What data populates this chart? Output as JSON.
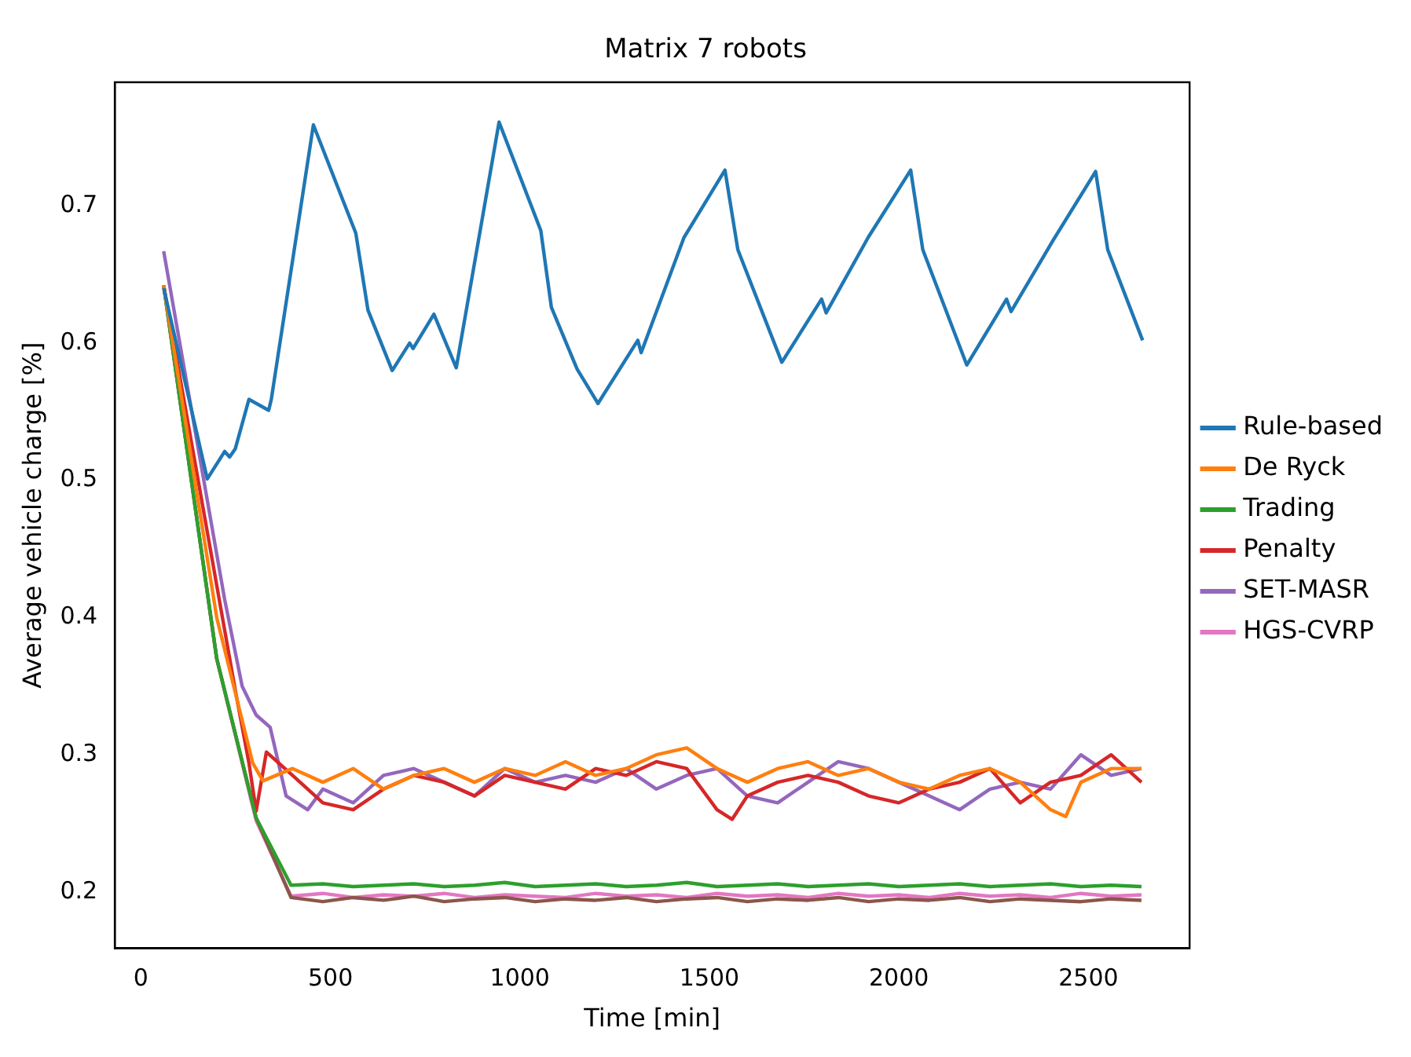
{
  "chart_data": {
    "type": "line",
    "title": "Matrix 7 robots",
    "xlabel": "Time [min]",
    "ylabel": "Average vehicle charge [%]",
    "xlim": [
      -69,
      2767
    ],
    "xticks": [
      0,
      500,
      1000,
      1500,
      2000,
      2500
    ],
    "ylim": [
      0.159,
      0.79
    ],
    "yticks": [
      0.2,
      0.3,
      0.4,
      0.5,
      0.6,
      0.7
    ],
    "grid": false,
    "legend": "right",
    "marker": "none",
    "line_style": "solid",
    "series": [
      {
        "name": "Rule-based",
        "color": "#1f77b4",
        "x": [
          60,
          175,
          221,
          234,
          249,
          285,
          337,
          344,
          455,
          567,
          599,
          663,
          709,
          718,
          773,
          832,
          945,
          1055,
          1083,
          1151,
          1206,
          1311,
          1320,
          1433,
          1541,
          1575,
          1691,
          1796,
          1808,
          1919,
          2031,
          2063,
          2179,
          2284,
          2296,
          2407,
          2519,
          2551,
          2643
        ],
        "values": [
          0.64,
          0.501,
          0.521,
          0.517,
          0.523,
          0.559,
          0.551,
          0.559,
          0.759,
          0.68,
          0.624,
          0.58,
          0.6,
          0.596,
          0.621,
          0.582,
          0.761,
          0.682,
          0.626,
          0.581,
          0.556,
          0.602,
          0.593,
          0.677,
          0.726,
          0.668,
          0.586,
          0.632,
          0.622,
          0.677,
          0.726,
          0.668,
          0.584,
          0.632,
          0.623,
          0.675,
          0.725,
          0.668,
          0.602
        ]
      },
      {
        "name": "De Ryck",
        "color": "#ff7f0e",
        "x": [
          60,
          200,
          295,
          322,
          400,
          480,
          560,
          640,
          720,
          800,
          880,
          960,
          1040,
          1120,
          1200,
          1280,
          1360,
          1440,
          1520,
          1600,
          1680,
          1760,
          1840,
          1920,
          2000,
          2080,
          2160,
          2240,
          2320,
          2400,
          2440,
          2480,
          2560,
          2640
        ],
        "values": [
          0.642,
          0.4,
          0.294,
          0.281,
          0.29,
          0.28,
          0.29,
          0.275,
          0.285,
          0.29,
          0.28,
          0.29,
          0.285,
          0.295,
          0.285,
          0.29,
          0.3,
          0.305,
          0.29,
          0.28,
          0.29,
          0.295,
          0.285,
          0.29,
          0.28,
          0.275,
          0.285,
          0.29,
          0.28,
          0.26,
          0.255,
          0.28,
          0.29,
          0.29
        ]
      },
      {
        "name": "Trading",
        "color": "#2ca02c",
        "x": [
          60,
          200,
          304,
          396,
          480,
          560,
          640,
          720,
          800,
          880,
          960,
          1040,
          1120,
          1200,
          1280,
          1360,
          1440,
          1520,
          1600,
          1680,
          1760,
          1840,
          1920,
          2000,
          2080,
          2160,
          2240,
          2320,
          2400,
          2480,
          2560,
          2640
        ],
        "values": [
          0.642,
          0.37,
          0.254,
          0.205,
          0.206,
          0.204,
          0.205,
          0.206,
          0.204,
          0.205,
          0.207,
          0.204,
          0.205,
          0.206,
          0.204,
          0.205,
          0.207,
          0.204,
          0.205,
          0.206,
          0.204,
          0.205,
          0.206,
          0.204,
          0.205,
          0.206,
          0.204,
          0.205,
          0.206,
          0.204,
          0.205,
          0.204
        ]
      },
      {
        "name": "Penalty",
        "color": "#d62728",
        "x": [
          60,
          249,
          285,
          304,
          331,
          400,
          480,
          560,
          640,
          720,
          800,
          880,
          960,
          1040,
          1120,
          1200,
          1280,
          1360,
          1440,
          1520,
          1560,
          1600,
          1680,
          1760,
          1840,
          1920,
          2000,
          2080,
          2160,
          2240,
          2320,
          2400,
          2480,
          2560,
          2640
        ],
        "values": [
          0.642,
          0.347,
          0.294,
          0.259,
          0.302,
          0.285,
          0.265,
          0.26,
          0.275,
          0.285,
          0.28,
          0.27,
          0.285,
          0.28,
          0.275,
          0.29,
          0.285,
          0.295,
          0.29,
          0.26,
          0.253,
          0.27,
          0.28,
          0.285,
          0.28,
          0.27,
          0.265,
          0.275,
          0.28,
          0.29,
          0.265,
          0.28,
          0.285,
          0.3,
          0.28
        ]
      },
      {
        "name": "SET-MASR",
        "color": "#9467bd",
        "x": [
          60,
          221,
          267,
          304,
          341,
          383,
          440,
          480,
          560,
          640,
          720,
          800,
          880,
          960,
          1040,
          1120,
          1200,
          1280,
          1360,
          1440,
          1520,
          1600,
          1680,
          1760,
          1840,
          1920,
          2000,
          2080,
          2160,
          2240,
          2320,
          2400,
          2480,
          2560,
          2640
        ],
        "values": [
          0.667,
          0.413,
          0.35,
          0.329,
          0.32,
          0.27,
          0.26,
          0.275,
          0.265,
          0.285,
          0.29,
          0.28,
          0.27,
          0.29,
          0.28,
          0.285,
          0.28,
          0.29,
          0.275,
          0.285,
          0.29,
          0.27,
          0.265,
          0.28,
          0.295,
          0.29,
          0.28,
          0.27,
          0.26,
          0.275,
          0.28,
          0.275,
          0.3,
          0.285,
          0.29
        ]
      },
      {
        "color": "#8c564b",
        "x": [
          60,
          200,
          304,
          396,
          480,
          560,
          640,
          720,
          800,
          880,
          960,
          1040,
          1120,
          1200,
          1280,
          1360,
          1440,
          1520,
          1600,
          1680,
          1760,
          1840,
          1920,
          2000,
          2080,
          2160,
          2240,
          2320,
          2400,
          2480,
          2560,
          2640
        ],
        "values": [
          0.642,
          0.37,
          0.254,
          0.196,
          0.193,
          0.196,
          0.194,
          0.197,
          0.193,
          0.195,
          0.196,
          0.193,
          0.195,
          0.194,
          0.196,
          0.193,
          0.195,
          0.196,
          0.193,
          0.195,
          0.194,
          0.196,
          0.193,
          0.195,
          0.194,
          0.196,
          0.193,
          0.195,
          0.194,
          0.193,
          0.195,
          0.194
        ]
      },
      {
        "name": "HGS-CVRP",
        "color": "#e377c2",
        "x": [
          60,
          200,
          304,
          396,
          480,
          560,
          640,
          720,
          800,
          880,
          960,
          1040,
          1120,
          1200,
          1280,
          1360,
          1440,
          1520,
          1600,
          1680,
          1760,
          1840,
          1920,
          2000,
          2080,
          2160,
          2240,
          2320,
          2400,
          2480,
          2560,
          2640
        ],
        "values": [
          0.642,
          0.37,
          0.252,
          0.197,
          0.199,
          0.196,
          0.198,
          0.197,
          0.199,
          0.196,
          0.198,
          0.197,
          0.196,
          0.199,
          0.197,
          0.198,
          0.196,
          0.199,
          0.197,
          0.198,
          0.196,
          0.199,
          0.197,
          0.198,
          0.196,
          0.199,
          0.197,
          0.198,
          0.196,
          0.199,
          0.197,
          0.198
        ]
      }
    ]
  }
}
